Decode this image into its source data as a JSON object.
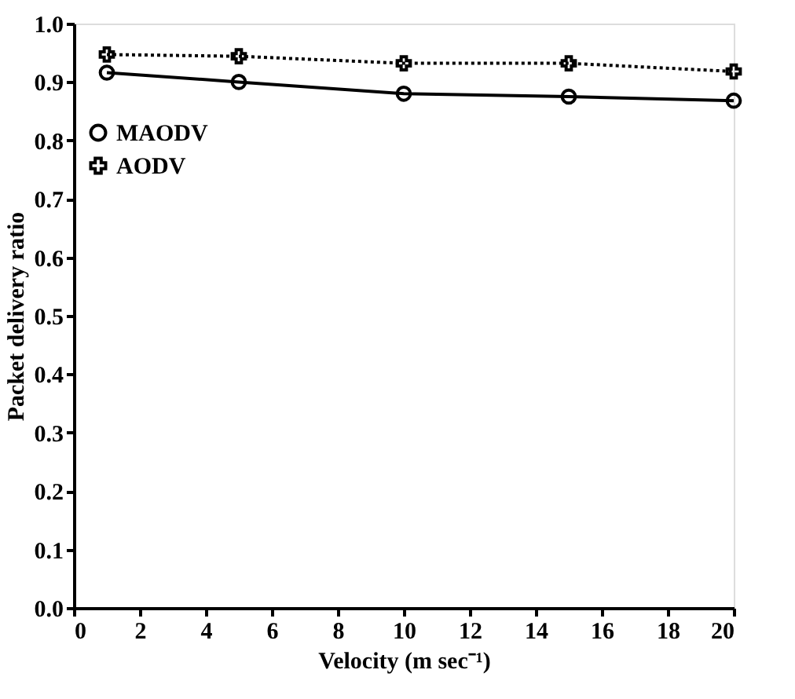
{
  "chart_data": {
    "type": "line",
    "xlabel": "Velocity (m sec⁻¹)",
    "ylabel": "Packet delivery ratio",
    "x": [
      1,
      5,
      10,
      15,
      20
    ],
    "series": [
      {
        "name": "MAODV",
        "color": "#000000",
        "marker": "circle",
        "line_style": "solid",
        "values": [
          0.916,
          0.9,
          0.88,
          0.875,
          0.868
        ]
      },
      {
        "name": "AODV",
        "color": "#000000",
        "marker": "cross",
        "line_style": "dotted",
        "values": [
          0.947,
          0.944,
          0.932,
          0.932,
          0.918
        ]
      }
    ],
    "xlim": [
      0,
      20
    ],
    "xticks": [
      0,
      2,
      4,
      6,
      8,
      10,
      12,
      14,
      16,
      18,
      20
    ],
    "ylim": [
      0,
      1
    ],
    "yticks": [
      {
        "value": 0,
        "label": "0.0"
      },
      {
        "value": 0.1,
        "label": "0.1"
      },
      {
        "value": 0.2,
        "label": "0.2"
      },
      {
        "value": 0.3,
        "label": "0.3"
      },
      {
        "value": 0.4,
        "label": "0.4"
      },
      {
        "value": 0.5,
        "label": "0.5"
      },
      {
        "value": 0.6,
        "label": "0.6"
      },
      {
        "value": 0.7,
        "label": "0.7"
      },
      {
        "value": 0.8,
        "label": "0.8"
      },
      {
        "value": 0.9,
        "label": "0.9"
      },
      {
        "value": 1,
        "label": "1.0"
      }
    ],
    "grid": false,
    "legend": "top left"
  }
}
